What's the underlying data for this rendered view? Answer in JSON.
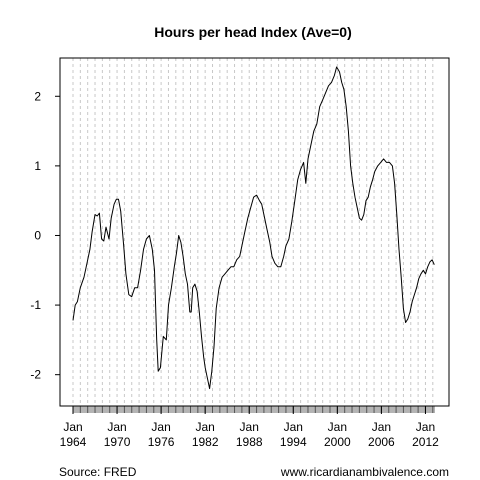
{
  "chart_data": {
    "type": "line",
    "title": "Hours per head Index (Ave=0)",
    "xlabel": "",
    "ylabel": "",
    "x_range": [
      1964.0,
      2013.3
    ],
    "ylim": [
      -2.45,
      2.55
    ],
    "y_ticks": [
      -2,
      -1,
      0,
      1,
      2
    ],
    "y_tick_labels": [
      "-2",
      "-1",
      "0",
      "1",
      "2"
    ],
    "x_ticks": [
      {
        "year": 1964,
        "month": "Jan",
        "label": "1964"
      },
      {
        "year": 1970,
        "month": "Jan",
        "label": "1970"
      },
      {
        "year": 1976,
        "month": "Jan",
        "label": "1976"
      },
      {
        "year": 1982,
        "month": "Jan",
        "label": "1982"
      },
      {
        "year": 1988,
        "month": "Jan",
        "label": "1988"
      },
      {
        "year": 1994,
        "month": "Jan",
        "label": "1994"
      },
      {
        "year": 2000,
        "month": "Jan",
        "label": "2000"
      },
      {
        "year": 2006,
        "month": "Jan",
        "label": "2006"
      },
      {
        "year": 2012,
        "month": "Jan",
        "label": "2012"
      }
    ],
    "grid": "vertical dashed, yearly",
    "line_color": "#000000",
    "series": [
      {
        "points": [
          [
            1964.0,
            -1.22
          ],
          [
            1964.3,
            -1.0
          ],
          [
            1964.6,
            -0.95
          ],
          [
            1965.0,
            -0.75
          ],
          [
            1965.5,
            -0.6
          ],
          [
            1966.0,
            -0.35
          ],
          [
            1966.3,
            -0.2
          ],
          [
            1966.6,
            0.05
          ],
          [
            1967.0,
            0.3
          ],
          [
            1967.3,
            0.28
          ],
          [
            1967.6,
            0.32
          ],
          [
            1967.9,
            -0.05
          ],
          [
            1968.2,
            -0.08
          ],
          [
            1968.5,
            0.12
          ],
          [
            1968.9,
            -0.05
          ],
          [
            1969.2,
            0.25
          ],
          [
            1969.6,
            0.45
          ],
          [
            1969.9,
            0.52
          ],
          [
            1970.2,
            0.52
          ],
          [
            1970.5,
            0.35
          ],
          [
            1970.9,
            -0.15
          ],
          [
            1971.2,
            -0.55
          ],
          [
            1971.6,
            -0.85
          ],
          [
            1972.0,
            -0.88
          ],
          [
            1972.4,
            -0.75
          ],
          [
            1972.8,
            -0.75
          ],
          [
            1973.2,
            -0.5
          ],
          [
            1973.6,
            -0.2
          ],
          [
            1974.0,
            -0.05
          ],
          [
            1974.4,
            0.0
          ],
          [
            1974.8,
            -0.2
          ],
          [
            1975.1,
            -0.5
          ],
          [
            1975.4,
            -1.5
          ],
          [
            1975.6,
            -1.95
          ],
          [
            1975.9,
            -1.9
          ],
          [
            1976.3,
            -1.45
          ],
          [
            1976.7,
            -1.5
          ],
          [
            1977.0,
            -1.0
          ],
          [
            1977.4,
            -0.75
          ],
          [
            1977.8,
            -0.45
          ],
          [
            1978.1,
            -0.25
          ],
          [
            1978.4,
            0.0
          ],
          [
            1978.7,
            -0.1
          ],
          [
            1979.0,
            -0.3
          ],
          [
            1979.3,
            -0.55
          ],
          [
            1979.6,
            -0.7
          ],
          [
            1979.9,
            -1.1
          ],
          [
            1980.1,
            -1.1
          ],
          [
            1980.3,
            -0.75
          ],
          [
            1980.6,
            -0.7
          ],
          [
            1980.9,
            -0.8
          ],
          [
            1981.2,
            -1.1
          ],
          [
            1981.5,
            -1.45
          ],
          [
            1981.8,
            -1.75
          ],
          [
            1982.0,
            -1.9
          ],
          [
            1982.3,
            -2.05
          ],
          [
            1982.6,
            -2.2
          ],
          [
            1982.9,
            -1.95
          ],
          [
            1983.2,
            -1.6
          ],
          [
            1983.5,
            -1.05
          ],
          [
            1983.9,
            -0.75
          ],
          [
            1984.3,
            -0.6
          ],
          [
            1984.7,
            -0.55
          ],
          [
            1985.1,
            -0.5
          ],
          [
            1985.5,
            -0.45
          ],
          [
            1985.9,
            -0.45
          ],
          [
            1986.3,
            -0.35
          ],
          [
            1986.7,
            -0.3
          ],
          [
            1987.0,
            -0.15
          ],
          [
            1987.4,
            0.05
          ],
          [
            1987.8,
            0.25
          ],
          [
            1988.2,
            0.4
          ],
          [
            1988.6,
            0.55
          ],
          [
            1989.0,
            0.58
          ],
          [
            1989.4,
            0.5
          ],
          [
            1989.7,
            0.45
          ],
          [
            1990.0,
            0.3
          ],
          [
            1990.4,
            0.1
          ],
          [
            1990.8,
            -0.1
          ],
          [
            1991.1,
            -0.3
          ],
          [
            1991.5,
            -0.4
          ],
          [
            1991.9,
            -0.45
          ],
          [
            1992.3,
            -0.45
          ],
          [
            1992.7,
            -0.3
          ],
          [
            1993.0,
            -0.15
          ],
          [
            1993.4,
            -0.05
          ],
          [
            1993.8,
            0.2
          ],
          [
            1994.2,
            0.5
          ],
          [
            1994.6,
            0.8
          ],
          [
            1995.0,
            0.95
          ],
          [
            1995.4,
            1.05
          ],
          [
            1995.7,
            0.75
          ],
          [
            1996.0,
            1.1
          ],
          [
            1996.4,
            1.3
          ],
          [
            1996.8,
            1.5
          ],
          [
            1997.2,
            1.6
          ],
          [
            1997.6,
            1.85
          ],
          [
            1998.0,
            1.95
          ],
          [
            1998.4,
            2.05
          ],
          [
            1998.8,
            2.15
          ],
          [
            1999.2,
            2.2
          ],
          [
            1999.6,
            2.3
          ],
          [
            1999.9,
            2.42
          ],
          [
            2000.3,
            2.35
          ],
          [
            2000.6,
            2.2
          ],
          [
            2000.9,
            2.1
          ],
          [
            2001.2,
            1.85
          ],
          [
            2001.5,
            1.5
          ],
          [
            2001.8,
            1.0
          ],
          [
            2002.1,
            0.75
          ],
          [
            2002.4,
            0.55
          ],
          [
            2002.7,
            0.4
          ],
          [
            2003.0,
            0.25
          ],
          [
            2003.3,
            0.22
          ],
          [
            2003.6,
            0.3
          ],
          [
            2003.9,
            0.5
          ],
          [
            2004.2,
            0.55
          ],
          [
            2004.5,
            0.7
          ],
          [
            2004.8,
            0.8
          ],
          [
            2005.1,
            0.92
          ],
          [
            2005.5,
            1.0
          ],
          [
            2005.9,
            1.05
          ],
          [
            2006.3,
            1.1
          ],
          [
            2006.7,
            1.05
          ],
          [
            2007.1,
            1.05
          ],
          [
            2007.5,
            1.0
          ],
          [
            2007.8,
            0.75
          ],
          [
            2008.1,
            0.3
          ],
          [
            2008.4,
            -0.2
          ],
          [
            2008.7,
            -0.6
          ],
          [
            2009.0,
            -1.05
          ],
          [
            2009.3,
            -1.25
          ],
          [
            2009.6,
            -1.2
          ],
          [
            2009.9,
            -1.1
          ],
          [
            2010.2,
            -0.95
          ],
          [
            2010.5,
            -0.85
          ],
          [
            2010.8,
            -0.75
          ],
          [
            2011.1,
            -0.62
          ],
          [
            2011.4,
            -0.55
          ],
          [
            2011.7,
            -0.5
          ],
          [
            2012.0,
            -0.55
          ],
          [
            2012.3,
            -0.45
          ],
          [
            2012.6,
            -0.38
          ],
          [
            2012.9,
            -0.35
          ],
          [
            2013.2,
            -0.42
          ]
        ]
      }
    ]
  },
  "footer": {
    "source": "Source: FRED",
    "website": "www.ricardianambivalence.com"
  }
}
